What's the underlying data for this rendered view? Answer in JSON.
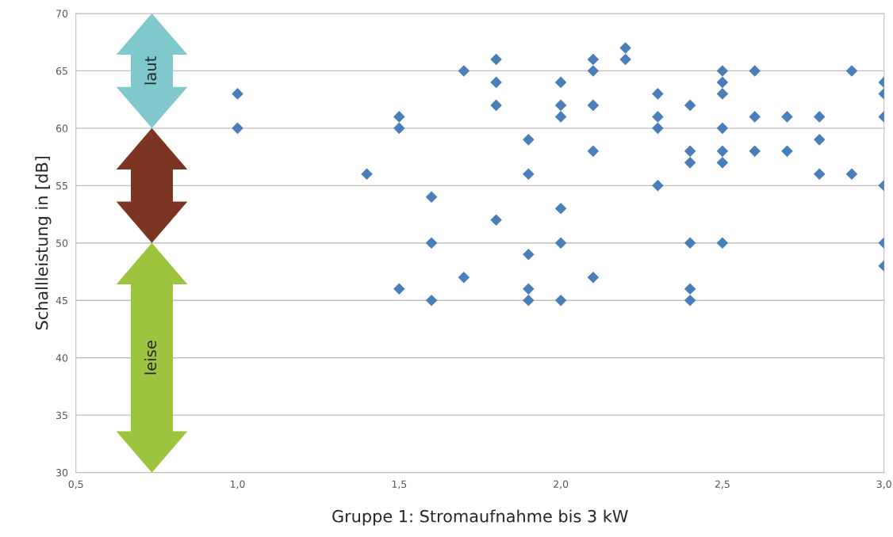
{
  "chart_data": {
    "type": "scatter",
    "xlabel": "Gruppe 1: Stromaufnahme bis 3 kW",
    "ylabel": "Schallleistung in [dB]",
    "xlim": [
      0.5,
      3.0
    ],
    "ylim": [
      30,
      70
    ],
    "xticks": [
      {
        "value": 0.5,
        "label": "0,5"
      },
      {
        "value": 1.0,
        "label": "1,0"
      },
      {
        "value": 1.5,
        "label": "1,5"
      },
      {
        "value": 2.0,
        "label": "2,0"
      },
      {
        "value": 2.5,
        "label": "2,5"
      },
      {
        "value": 3.0,
        "label": "3,0"
      }
    ],
    "yticks": [
      30,
      35,
      40,
      45,
      50,
      55,
      60,
      65,
      70
    ],
    "grid": "y",
    "marker": "diamond",
    "legend": false,
    "annotations": [
      "laut",
      "leise"
    ],
    "series": [
      {
        "color": "#4a7ebb",
        "x": [
          1.0,
          1.0,
          1.4,
          1.5,
          1.5,
          1.5,
          1.6,
          1.6,
          1.6,
          1.7,
          1.7,
          1.8,
          1.8,
          1.8,
          1.8,
          1.9,
          1.9,
          1.9,
          1.9,
          1.9,
          2.0,
          2.0,
          2.0,
          2.0,
          2.0,
          2.0,
          2.1,
          2.1,
          2.1,
          2.1,
          2.1,
          2.2,
          2.2,
          2.3,
          2.3,
          2.3,
          2.3,
          2.4,
          2.4,
          2.4,
          2.4,
          2.4,
          2.4,
          2.5,
          2.5,
          2.5,
          2.5,
          2.5,
          2.5,
          2.5,
          2.6,
          2.6,
          2.6,
          2.7,
          2.7,
          2.8,
          2.8,
          2.8,
          2.9,
          2.9,
          3.0,
          3.0,
          3.0,
          3.0,
          3.0,
          3.0
        ],
        "values": [
          63,
          60,
          56,
          61,
          60,
          46,
          54,
          50,
          45,
          65,
          47,
          66,
          64,
          62,
          52,
          59,
          56,
          49,
          46,
          45,
          64,
          62,
          61,
          53,
          50,
          45,
          66,
          65,
          62,
          58,
          47,
          67,
          66,
          63,
          61,
          60,
          55,
          62,
          58,
          57,
          50,
          46,
          45,
          65,
          64,
          63,
          60,
          58,
          57,
          50,
          65,
          61,
          58,
          61,
          58,
          61,
          59,
          56,
          65,
          56,
          64,
          63,
          61,
          55,
          50,
          48
        ]
      }
    ]
  }
}
